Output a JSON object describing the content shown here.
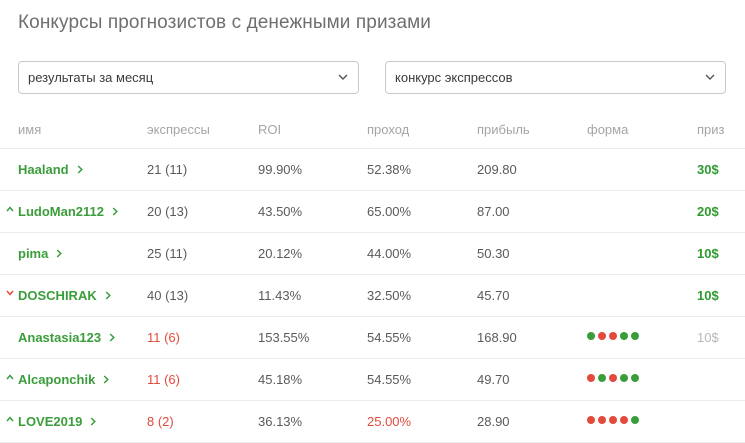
{
  "title": "Конкурсы прогнозистов с денежными призами",
  "filters": {
    "period": "результаты за месяц",
    "contest": "конкурс экспрессов"
  },
  "headers": {
    "name": "имя",
    "express": "экспрессы",
    "roi": "ROI",
    "pass": "проход",
    "profit": "прибыль",
    "form": "форма",
    "prize": "приз"
  },
  "colors": {
    "green": "#3a9d3a",
    "red": "#e24a3b",
    "form_win": "#3a9d3a",
    "form_loss": "#e24a3b"
  },
  "rows": [
    {
      "name": "Haaland",
      "trend": "",
      "express": "21 (11)",
      "express_red": false,
      "roi": "99.90%",
      "pass": "52.38%",
      "pass_red": false,
      "profit": "209.80",
      "form": [],
      "prize": "30$",
      "prize_muted": false
    },
    {
      "name": "LudoMan2112",
      "trend": "up",
      "express": "20 (13)",
      "express_red": false,
      "roi": "43.50%",
      "pass": "65.00%",
      "pass_red": false,
      "profit": "87.00",
      "form": [],
      "prize": "20$",
      "prize_muted": false
    },
    {
      "name": "pima",
      "trend": "",
      "express": "25 (11)",
      "express_red": false,
      "roi": "20.12%",
      "pass": "44.00%",
      "pass_red": false,
      "profit": "50.30",
      "form": [],
      "prize": "10$",
      "prize_muted": false
    },
    {
      "name": "DOSCHIRAK",
      "trend": "down",
      "express": "40 (13)",
      "express_red": false,
      "roi": "11.43%",
      "pass": "32.50%",
      "pass_red": false,
      "profit": "45.70",
      "form": [],
      "prize": "10$",
      "prize_muted": false
    },
    {
      "name": "Anastasia123",
      "trend": "",
      "express": "11 (6)",
      "express_red": true,
      "roi": "153.55%",
      "pass": "54.55%",
      "pass_red": false,
      "profit": "168.90",
      "form": [
        "W",
        "L",
        "L",
        "W",
        "W"
      ],
      "prize": "10$",
      "prize_muted": true
    },
    {
      "name": "Alcaponchik",
      "trend": "up",
      "express": "11 (6)",
      "express_red": true,
      "roi": "45.18%",
      "pass": "54.55%",
      "pass_red": false,
      "profit": "49.70",
      "form": [
        "L",
        "W",
        "L",
        "W",
        "W"
      ],
      "prize": "",
      "prize_muted": false
    },
    {
      "name": "LOVE2019",
      "trend": "up",
      "express": "8 (2)",
      "express_red": true,
      "roi": "36.13%",
      "pass": "25.00%",
      "pass_red": true,
      "profit": "28.90",
      "form": [
        "L",
        "L",
        "L",
        "L",
        "W"
      ],
      "prize": "",
      "prize_muted": false
    }
  ]
}
